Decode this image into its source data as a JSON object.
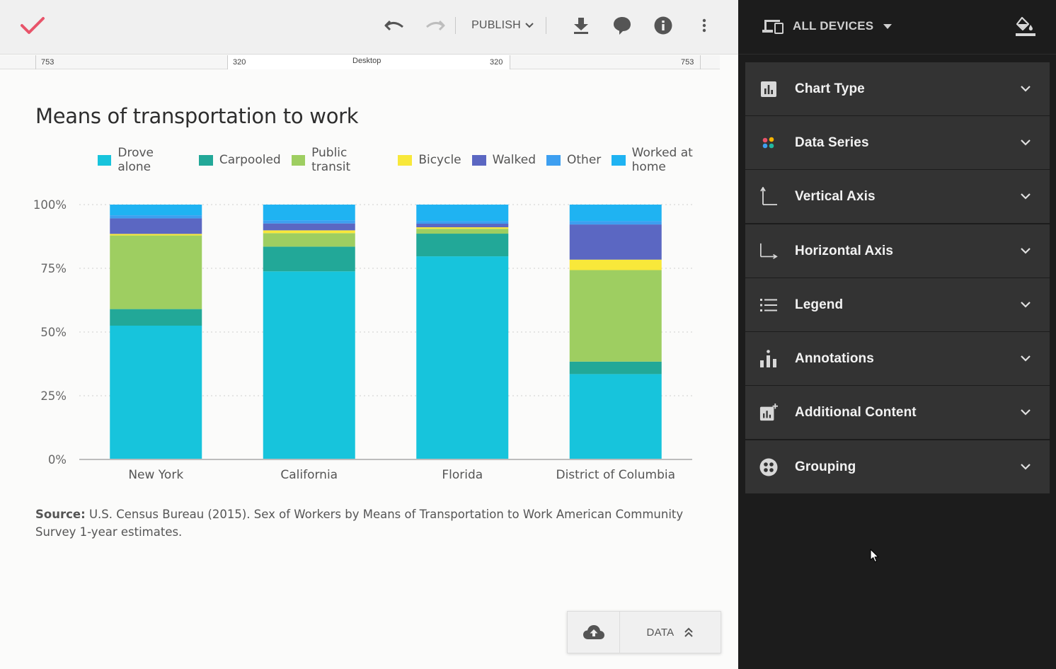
{
  "toolbar": {
    "publish_label": "PUBLISH",
    "icons": [
      "check-icon",
      "undo-icon",
      "redo-icon",
      "download-icon",
      "comment-icon",
      "info-icon",
      "more-vert-icon"
    ],
    "accent_color": "#e8546a"
  },
  "ruler": {
    "left_outer": "753",
    "left_inner": "320",
    "center_label": "Desktop",
    "right_inner": "320",
    "right_outer": "753"
  },
  "chart": {
    "title": "Means of transportation to work",
    "source_label": "Source:",
    "source_text": "U.S. Census Bureau (2015). Sex of Workers by Means of Transportation to Work American Community Survey 1-year estimates."
  },
  "chart_data": {
    "type": "bar",
    "stacked": true,
    "title": "Means of transportation to work",
    "xlabel": "",
    "ylabel": "",
    "ylim": [
      0,
      100
    ],
    "y_ticks": [
      "0%",
      "25%",
      "50%",
      "75%",
      "100%"
    ],
    "y_tick_values": [
      0,
      25,
      50,
      75,
      100
    ],
    "legend_position": "top",
    "grid": "horizontal dotted",
    "categories": [
      "New York",
      "California",
      "Florida",
      "District of Columbia"
    ],
    "series": [
      {
        "name": "Drove alone",
        "color": "#17c4dc",
        "values": [
          52.5,
          73.8,
          79.7,
          33.5
        ]
      },
      {
        "name": "Carpooled",
        "color": "#22a898",
        "values": [
          6.5,
          9.7,
          8.9,
          4.9
        ]
      },
      {
        "name": "Public transit",
        "color": "#9ece61",
        "values": [
          28.9,
          5.3,
          1.9,
          35.9
        ]
      },
      {
        "name": "Bicycle",
        "color": "#f8e83a",
        "values": [
          0.6,
          1.1,
          0.6,
          4.1
        ]
      },
      {
        "name": "Walked",
        "color": "#5b67c2",
        "values": [
          6.1,
          2.7,
          1.4,
          13.8
        ]
      },
      {
        "name": "Other",
        "color": "#3d9ff0",
        "values": [
          1.2,
          1.2,
          1.0,
          1.3
        ]
      },
      {
        "name": "Worked at home",
        "color": "#1fb3f2",
        "values": [
          4.2,
          6.2,
          6.5,
          6.5
        ]
      }
    ]
  },
  "data_panel": {
    "data_label": "DATA",
    "icons": [
      "cloud-upload-icon",
      "double-chevron-up-icon"
    ]
  },
  "sidepanel": {
    "devices_label": "ALL DEVICES",
    "sections": [
      {
        "label": "Chart Type",
        "icon": "bar-chart-icon"
      },
      {
        "label": "Data Series",
        "icon": "palette-dots-icon"
      },
      {
        "label": "Vertical Axis",
        "icon": "vertical-axis-icon"
      },
      {
        "label": "Horizontal Axis",
        "icon": "horizontal-axis-icon"
      },
      {
        "label": "Legend",
        "icon": "list-icon"
      },
      {
        "label": "Annotations",
        "icon": "annotations-icon"
      },
      {
        "label": "Additional Content",
        "icon": "add-chart-icon"
      },
      {
        "label": "Grouping",
        "icon": "grouping-icon"
      }
    ]
  }
}
